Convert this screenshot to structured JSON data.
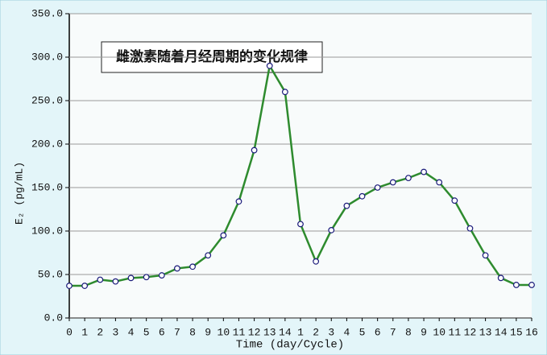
{
  "chart_data": {
    "type": "line",
    "annotation": "雌激素随着月经周期的变化规律",
    "x_label": "Time (day/Cycle)",
    "y_label": "E₂ (pg/mL)",
    "categories": [
      "0",
      "1",
      "2",
      "3",
      "4",
      "5",
      "6",
      "7",
      "8",
      "9",
      "10",
      "11",
      "12",
      "13",
      "14",
      "1",
      "2",
      "3",
      "4",
      "5",
      "6",
      "7",
      "8",
      "9",
      "10",
      "11",
      "12",
      "13",
      "14",
      "15",
      "16"
    ],
    "series": [
      {
        "name": "E2",
        "color": "#2e8b2e",
        "marker_edge": "#1a1a7a",
        "values": [
          37,
          37,
          44,
          42,
          46,
          47,
          49,
          57,
          59,
          72,
          95,
          134,
          193,
          290,
          260,
          108,
          65,
          101,
          129,
          140,
          150,
          156,
          161,
          168,
          156,
          135,
          103,
          72,
          46,
          38,
          38
        ]
      }
    ],
    "ylim": [
      0,
      350
    ],
    "yticks": [
      {
        "value": 0,
        "label": "0.0"
      },
      {
        "value": 50,
        "label": "50.0"
      },
      {
        "value": 100,
        "label": "100.0"
      },
      {
        "value": 150,
        "label": "150.0"
      },
      {
        "value": 200,
        "label": "200.0"
      },
      {
        "value": 250,
        "label": "250.0"
      },
      {
        "value": 300,
        "label": "300.0"
      },
      {
        "value": 350,
        "label": "350.0"
      }
    ],
    "grid": true
  }
}
